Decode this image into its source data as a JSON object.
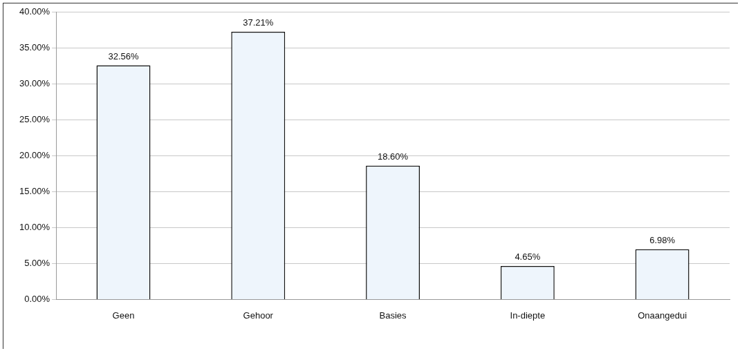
{
  "chart_data": {
    "type": "bar",
    "categories": [
      "Geen",
      "Gehoor",
      "Basies",
      "In-diepte",
      "Onaangedui"
    ],
    "values": [
      32.56,
      37.21,
      18.6,
      4.65,
      6.98
    ],
    "value_labels": [
      "32.56%",
      "37.21%",
      "18.60%",
      "4.65%",
      "6.98%"
    ],
    "color": "#eef5fc",
    "ylim": [
      0,
      40
    ],
    "yticks": [
      {
        "value": 0,
        "label": "0.00%"
      },
      {
        "value": 5,
        "label": "5.00%"
      },
      {
        "value": 10,
        "label": "10.00%"
      },
      {
        "value": 15,
        "label": "15.00%"
      },
      {
        "value": 20,
        "label": "20.00%"
      },
      {
        "value": 25,
        "label": "25.00%"
      },
      {
        "value": 30,
        "label": "30.00%"
      },
      {
        "value": 35,
        "label": "35.00%"
      },
      {
        "value": 40,
        "label": "40.00%"
      }
    ],
    "grid": "y",
    "legend": false
  }
}
